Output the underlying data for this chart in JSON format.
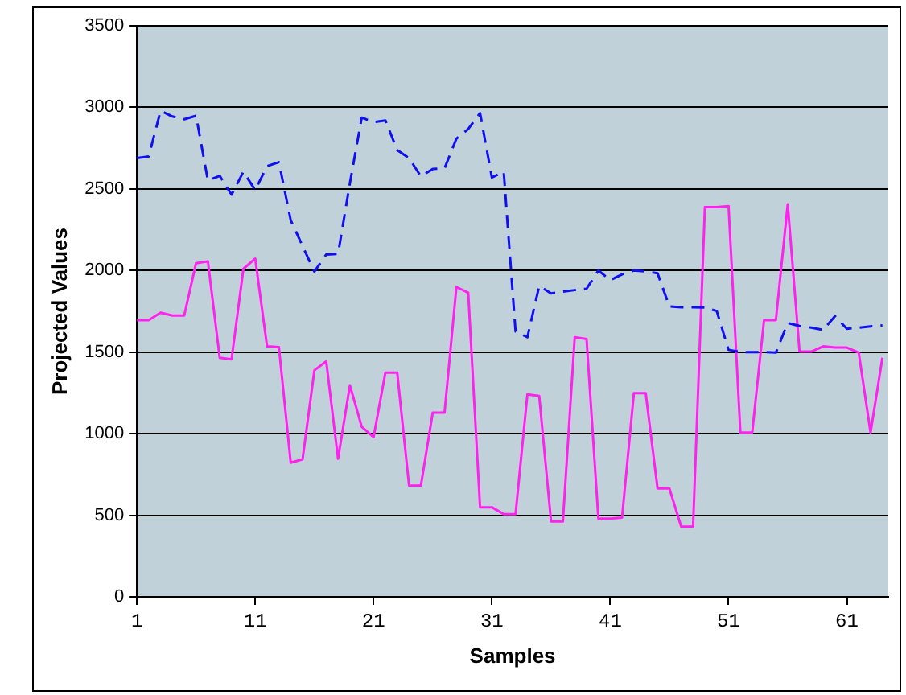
{
  "chart_data": {
    "type": "line",
    "xlabel": "Samples",
    "ylabel": "Projected Values",
    "x": [
      1,
      2,
      3,
      4,
      5,
      6,
      7,
      8,
      9,
      10,
      11,
      12,
      13,
      14,
      15,
      16,
      17,
      18,
      19,
      20,
      21,
      22,
      23,
      24,
      25,
      26,
      27,
      28,
      29,
      30,
      31,
      32,
      33,
      34,
      35,
      36,
      37,
      38,
      39,
      40,
      41,
      42,
      43,
      44,
      45,
      46,
      47,
      48,
      49,
      50,
      51,
      52,
      53,
      54,
      55,
      56,
      57,
      58,
      59,
      60,
      61,
      62,
      63,
      64
    ],
    "series": [
      {
        "color": "#1010ee",
        "line_style": "dashed",
        "values": [
          2689,
          2699,
          2979,
          2944,
          2927,
          2948,
          2552,
          2580,
          2465,
          2605,
          2493,
          2640,
          2664,
          2308,
          2150,
          1993,
          2098,
          2101,
          2535,
          2937,
          2909,
          2920,
          2738,
          2689,
          2577,
          2622,
          2626,
          2808,
          2867,
          2965,
          2570,
          2605,
          1626,
          1591,
          1906,
          1860,
          1870,
          1880,
          1888,
          2000,
          1941,
          1976,
          2000,
          1995,
          1983,
          1780,
          1775,
          1775,
          1773,
          1752,
          1514,
          1500,
          1500,
          1500,
          1497,
          1678,
          1660,
          1650,
          1636,
          1720,
          1643,
          1650,
          1658,
          1664
        ]
      },
      {
        "color": "#ff22ee",
        "line_style": "solid",
        "values": [
          1696,
          1696,
          1741,
          1724,
          1724,
          2045,
          2056,
          1465,
          1455,
          2010,
          2073,
          1535,
          1531,
          822,
          843,
          1388,
          1444,
          846,
          1297,
          1042,
          979,
          1374,
          1374,
          682,
          682,
          1129,
          1129,
          1899,
          1864,
          549,
          549,
          507,
          507,
          1241,
          1231,
          462,
          462,
          1591,
          1580,
          479,
          479,
          486,
          1248,
          1248,
          664,
          664,
          430,
          430,
          2388,
          2388,
          2395,
          1007,
          1007,
          1696,
          1696,
          2406,
          1503,
          1503,
          1535,
          1528,
          1528,
          1497,
          1007,
          1465
        ]
      }
    ],
    "xlim": [
      1,
      64.5
    ],
    "xticks": [
      1,
      11,
      21,
      31,
      41,
      51,
      61
    ],
    "ylim": [
      0,
      3500
    ],
    "yticks": [
      0,
      500,
      1000,
      1500,
      2000,
      2500,
      3000,
      3500
    ],
    "grid": "y",
    "legend": false,
    "marker": "none"
  }
}
